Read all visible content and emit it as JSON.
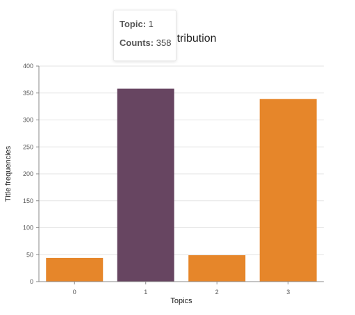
{
  "chart_data": {
    "type": "bar",
    "title": "Topic distribution",
    "xlabel": "Topics",
    "ylabel": "Title frequencies",
    "categories": [
      "0",
      "1",
      "2",
      "3"
    ],
    "values": [
      44,
      358,
      49,
      339
    ],
    "ylim": [
      0,
      400
    ],
    "yticks": [
      "0",
      "50",
      "100",
      "150",
      "200",
      "250",
      "300",
      "350",
      "400"
    ],
    "grid": true,
    "highlighted_index": 1
  },
  "colors": {
    "bar": "#e6862a",
    "bar_highlight": "#674561",
    "grid": "#e3e3e3",
    "axis": "#888888"
  },
  "tooltip": {
    "topic_key": "Topic:",
    "topic_value": "1",
    "counts_key": "Counts:",
    "counts_value": "358"
  }
}
